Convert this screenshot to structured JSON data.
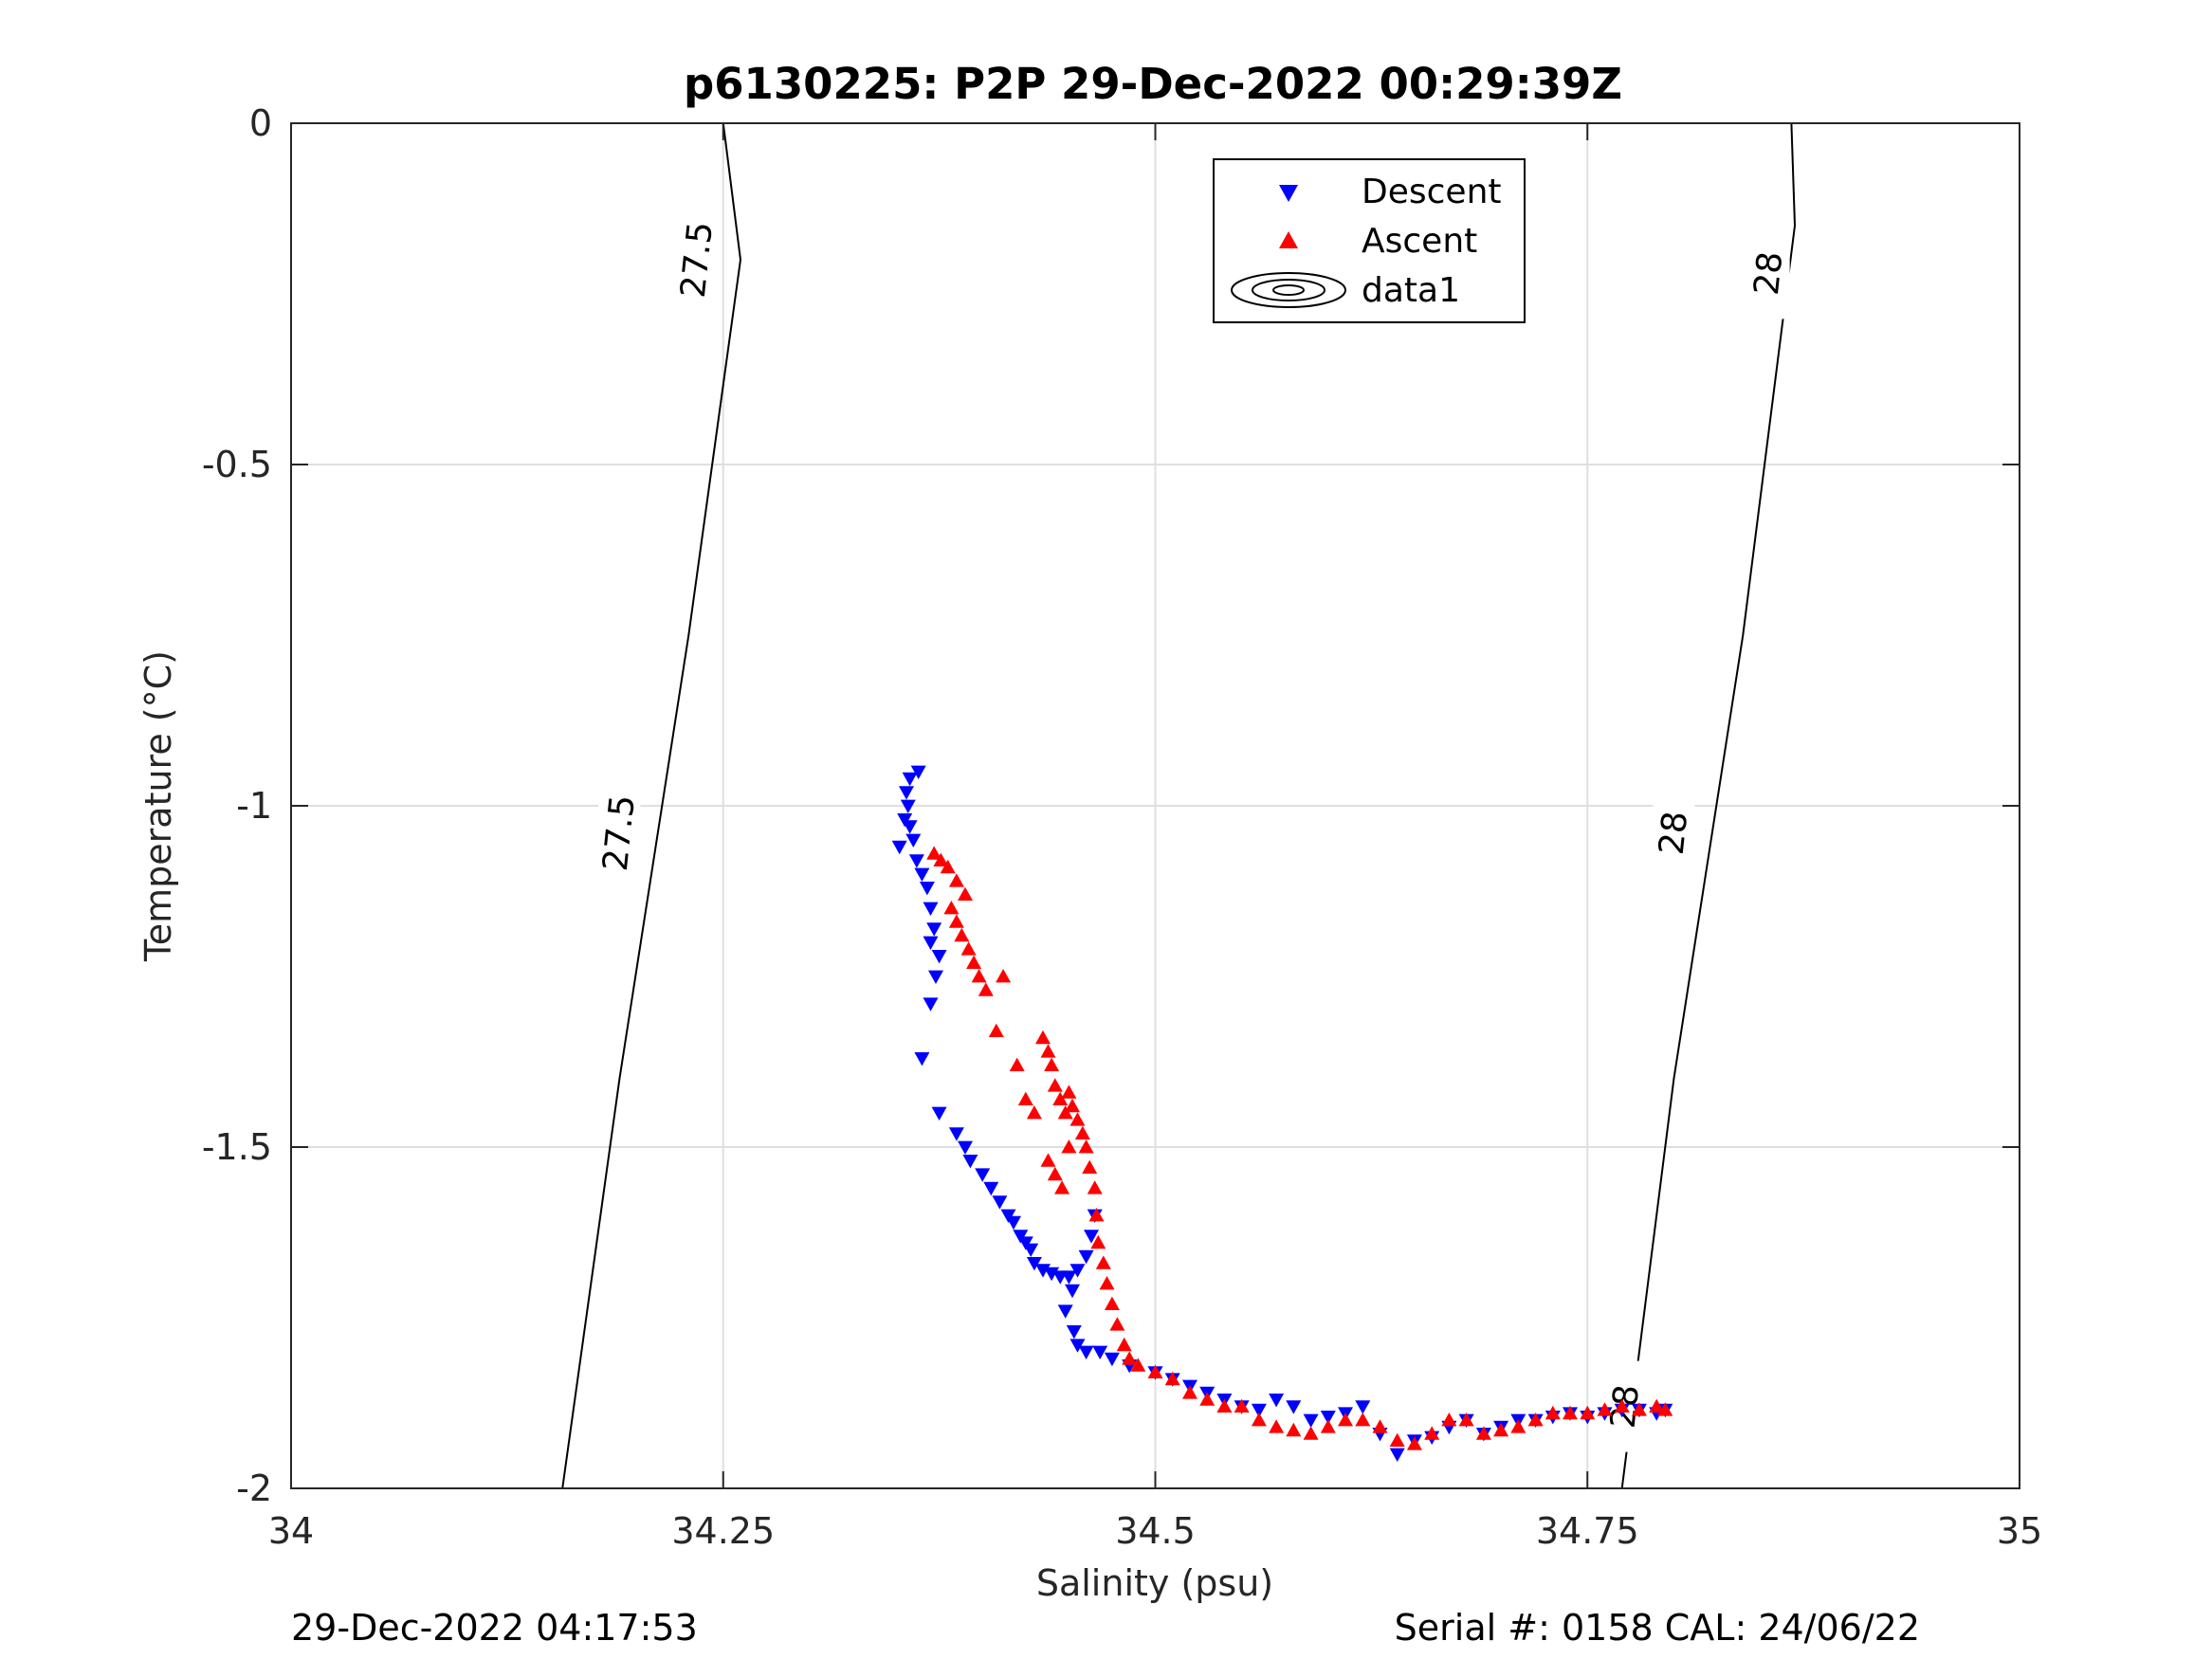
{
  "chart_data": {
    "type": "scatter",
    "title": "p6130225: P2P 29-Dec-2022 00:29:39Z",
    "xlabel": "Salinity (psu)",
    "ylabel": "Temperature (°C)",
    "xlim": [
      34,
      35
    ],
    "ylim": [
      -2,
      0
    ],
    "xticks": [
      34,
      34.25,
      34.5,
      34.75,
      35
    ],
    "xtick_labels": [
      "34",
      "34.25",
      "34.5",
      "34.75",
      "35"
    ],
    "yticks": [
      -2,
      -1.5,
      -1,
      -0.5,
      0
    ],
    "ytick_labels": [
      "-2",
      "-1.5",
      "-1",
      "-0.5",
      "0"
    ],
    "grid": true,
    "legend_position": "top-center",
    "legend": [
      "Descent",
      "Ascent",
      "data1"
    ],
    "series": [
      {
        "name": "Descent",
        "marker": "triangle-down",
        "color": "#0000ff",
        "points": [
          [
            34.363,
            -0.95
          ],
          [
            34.358,
            -0.96
          ],
          [
            34.356,
            -0.98
          ],
          [
            34.357,
            -1.0
          ],
          [
            34.355,
            -1.02
          ],
          [
            34.358,
            -1.03
          ],
          [
            34.36,
            -1.05
          ],
          [
            34.352,
            -1.06
          ],
          [
            34.362,
            -1.08
          ],
          [
            34.365,
            -1.1
          ],
          [
            34.368,
            -1.12
          ],
          [
            34.37,
            -1.15
          ],
          [
            34.372,
            -1.18
          ],
          [
            34.37,
            -1.2
          ],
          [
            34.375,
            -1.22
          ],
          [
            34.373,
            -1.25
          ],
          [
            34.37,
            -1.29
          ],
          [
            34.365,
            -1.37
          ],
          [
            34.375,
            -1.45
          ],
          [
            34.385,
            -1.48
          ],
          [
            34.39,
            -1.5
          ],
          [
            34.393,
            -1.52
          ],
          [
            34.4,
            -1.54
          ],
          [
            34.405,
            -1.56
          ],
          [
            34.41,
            -1.58
          ],
          [
            34.415,
            -1.6
          ],
          [
            34.418,
            -1.61
          ],
          [
            34.422,
            -1.63
          ],
          [
            34.425,
            -1.64
          ],
          [
            34.428,
            -1.65
          ],
          [
            34.43,
            -1.67
          ],
          [
            34.435,
            -1.68
          ],
          [
            34.44,
            -1.685
          ],
          [
            34.445,
            -1.69
          ],
          [
            34.45,
            -1.69
          ],
          [
            34.455,
            -1.68
          ],
          [
            34.46,
            -1.66
          ],
          [
            34.463,
            -1.63
          ],
          [
            34.465,
            -1.6
          ],
          [
            34.452,
            -1.71
          ],
          [
            34.448,
            -1.74
          ],
          [
            34.453,
            -1.77
          ],
          [
            34.455,
            -1.79
          ],
          [
            34.46,
            -1.8
          ],
          [
            34.468,
            -1.8
          ],
          [
            34.475,
            -1.81
          ],
          [
            34.485,
            -1.82
          ],
          [
            34.5,
            -1.83
          ],
          [
            34.51,
            -1.84
          ],
          [
            34.52,
            -1.85
          ],
          [
            34.53,
            -1.86
          ],
          [
            34.54,
            -1.87
          ],
          [
            34.55,
            -1.88
          ],
          [
            34.56,
            -1.885
          ],
          [
            34.57,
            -1.87
          ],
          [
            34.58,
            -1.88
          ],
          [
            34.59,
            -1.9
          ],
          [
            34.6,
            -1.895
          ],
          [
            34.61,
            -1.89
          ],
          [
            34.62,
            -1.88
          ],
          [
            34.63,
            -1.92
          ],
          [
            34.64,
            -1.95
          ],
          [
            34.65,
            -1.93
          ],
          [
            34.66,
            -1.925
          ],
          [
            34.67,
            -1.91
          ],
          [
            34.68,
            -1.9
          ],
          [
            34.69,
            -1.92
          ],
          [
            34.7,
            -1.91
          ],
          [
            34.71,
            -1.9
          ],
          [
            34.72,
            -1.9
          ],
          [
            34.73,
            -1.895
          ],
          [
            34.74,
            -1.89
          ],
          [
            34.75,
            -1.895
          ],
          [
            34.76,
            -1.89
          ],
          [
            34.77,
            -1.885
          ],
          [
            34.78,
            -1.885
          ],
          [
            34.79,
            -1.89
          ],
          [
            34.795,
            -1.885
          ]
        ]
      },
      {
        "name": "Ascent",
        "marker": "triangle-up",
        "color": "#ff0000",
        "points": [
          [
            34.372,
            -1.07
          ],
          [
            34.376,
            -1.08
          ],
          [
            34.38,
            -1.09
          ],
          [
            34.385,
            -1.11
          ],
          [
            34.39,
            -1.13
          ],
          [
            34.382,
            -1.15
          ],
          [
            34.385,
            -1.17
          ],
          [
            34.388,
            -1.19
          ],
          [
            34.392,
            -1.21
          ],
          [
            34.395,
            -1.23
          ],
          [
            34.398,
            -1.25
          ],
          [
            34.412,
            -1.25
          ],
          [
            34.402,
            -1.27
          ],
          [
            34.408,
            -1.33
          ],
          [
            34.42,
            -1.38
          ],
          [
            34.425,
            -1.43
          ],
          [
            34.43,
            -1.45
          ],
          [
            34.435,
            -1.34
          ],
          [
            34.438,
            -1.36
          ],
          [
            34.44,
            -1.38
          ],
          [
            34.442,
            -1.41
          ],
          [
            34.445,
            -1.43
          ],
          [
            34.448,
            -1.45
          ],
          [
            34.45,
            -1.42
          ],
          [
            34.452,
            -1.44
          ],
          [
            34.455,
            -1.46
          ],
          [
            34.458,
            -1.48
          ],
          [
            34.46,
            -1.5
          ],
          [
            34.438,
            -1.52
          ],
          [
            34.442,
            -1.54
          ],
          [
            34.446,
            -1.56
          ],
          [
            34.45,
            -1.5
          ],
          [
            34.462,
            -1.53
          ],
          [
            34.465,
            -1.56
          ],
          [
            34.466,
            -1.6
          ],
          [
            34.467,
            -1.64
          ],
          [
            34.47,
            -1.67
          ],
          [
            34.472,
            -1.7
          ],
          [
            34.475,
            -1.73
          ],
          [
            34.478,
            -1.76
          ],
          [
            34.482,
            -1.79
          ],
          [
            34.485,
            -1.81
          ],
          [
            34.49,
            -1.82
          ],
          [
            34.5,
            -1.83
          ],
          [
            34.51,
            -1.84
          ],
          [
            34.52,
            -1.86
          ],
          [
            34.53,
            -1.87
          ],
          [
            34.54,
            -1.88
          ],
          [
            34.55,
            -1.88
          ],
          [
            34.56,
            -1.9
          ],
          [
            34.57,
            -1.91
          ],
          [
            34.58,
            -1.915
          ],
          [
            34.59,
            -1.92
          ],
          [
            34.6,
            -1.91
          ],
          [
            34.61,
            -1.9
          ],
          [
            34.62,
            -1.9
          ],
          [
            34.63,
            -1.91
          ],
          [
            34.64,
            -1.93
          ],
          [
            34.65,
            -1.935
          ],
          [
            34.66,
            -1.92
          ],
          [
            34.67,
            -1.9
          ],
          [
            34.68,
            -1.9
          ],
          [
            34.69,
            -1.92
          ],
          [
            34.7,
            -1.915
          ],
          [
            34.71,
            -1.91
          ],
          [
            34.72,
            -1.9
          ],
          [
            34.73,
            -1.89
          ],
          [
            34.74,
            -1.89
          ],
          [
            34.75,
            -1.89
          ],
          [
            34.76,
            -1.885
          ],
          [
            34.77,
            -1.88
          ],
          [
            34.78,
            -1.885
          ],
          [
            34.79,
            -1.88
          ],
          [
            34.795,
            -1.885
          ]
        ]
      }
    ],
    "contours": [
      {
        "level": "27.5",
        "points": [
          [
            34.157,
            -2.0
          ],
          [
            34.19,
            -1.4
          ],
          [
            34.23,
            -0.75
          ],
          [
            34.26,
            -0.2
          ],
          [
            34.25,
            0.0
          ]
        ],
        "labels": [
          {
            "text": "27.5",
            "x": 34.235,
            "y": -0.2
          },
          {
            "text": "27.5",
            "x": 34.19,
            "y": -1.04
          }
        ]
      },
      {
        "level": "28",
        "points": [
          [
            34.77,
            -2.0
          ],
          [
            34.8,
            -1.4
          ],
          [
            34.84,
            -0.75
          ],
          [
            34.87,
            -0.15
          ],
          [
            34.868,
            0.0
          ]
        ],
        "labels": [
          {
            "text": "28",
            "x": 34.855,
            "y": -0.22
          },
          {
            "text": "28",
            "x": 34.8,
            "y": -1.04
          },
          {
            "text": "28",
            "x": 34.772,
            "y": -1.88
          }
        ]
      }
    ],
    "footer_left": "29-Dec-2022 04:17:53",
    "footer_right": "Serial #: 0158  CAL: 24/06/22"
  }
}
